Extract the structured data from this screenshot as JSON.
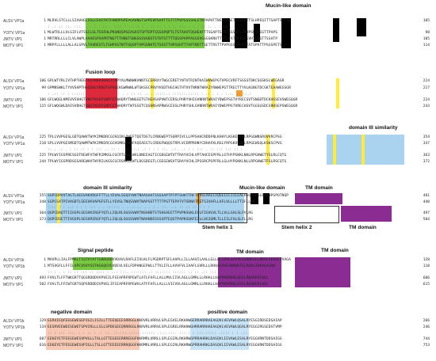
{
  "colors": {
    "signal": "#78c841",
    "fusion": "#e0283c",
    "domain3": "#a9d3ef",
    "tm": "#8b2c92",
    "negative": "#f7c9b5",
    "positive": "#c7e3f5",
    "conserved": "#000000",
    "yellow": "#ffeb3b"
  },
  "labels": {
    "signal_peptide": "Signal peptide",
    "mucin_like": "Mucin-like domain",
    "fusion_loop": "Fusion loop",
    "domain3": "domain III similarity",
    "stem1": "Stem helix 1",
    "stem2": "Stem helix 2",
    "tm_domain": "TM domain",
    "negative_domain": "negative domain",
    "positive_domain": "positive domain"
  },
  "block1": {
    "rows": [
      {
        "name": "ALSV VP1a",
        "start": "1",
        "seq": "MLRVLSTCLLLSIAVHGLSSLCEAFFKTFHKRPGPEPGAVNGTSPPEVPSAPTTSTTTPVPSSSSHLETKPAPHTTNSTPSAETSATPSTTSLHPEQITTSAPTSTTSE",
        "end": "105"
      },
      {
        "name": "YOTV VP1a",
        "start": "1",
        "seq": "MLWTRLLLVLSIFLVTSSCLGLTSSFHLPRSNQSPGEASASTSPTGPTSSSSPQPTLTSTAAVTQSHEAFTTSGAPTGTPSSSSQTSTPVPSNITGSTTPAPS",
        "end": "98"
      },
      {
        "name": "JMTV VP1",
        "start": "1",
        "seq": "MRTRRLLLLCLVLAWPLAAAESPSAPRTNGTTTHNSTSNGSGSVGDSTSTHTSTTTTQSSPAPPASGSVGSGSKNVTTSTSTATPTTSSGVHTENGTTSSATP",
        "end": "105"
      },
      {
        "name": "MOTV VP1",
        "start": "1",
        "seq": "MRPFLLLLLALLALSPVLTAVDESTLTGHPSSTNTTGQSPTAPGSNVTETSSSTTHPSSHTTTAPTNSTTSETTRSTTPVPGSSEHSTSTATSPATTPSGSPETS",
        "end": "114"
      }
    ],
    "cons": ": .: :: ::. :::.  . : : .  ::  . :.:: : .: ::  :   . :: :.  : : :. ::: .   : . :: :. . : ::  ."
  },
  "block2": {
    "rows": [
      {
        "name": "ALSV VP1a",
        "start": "106",
        "seq": "GPLWTYRLIVTHPTHEGTVGFKKASGDGTCRPYALMWNWKVNNTGCERRAYTWGCERETYNTVTRINTKAIWVWEPGTVPECVRFTSGSSTDKCSGSKSLWEGAGR",
        "end": "224"
      },
      {
        "name": "YOTV VP1a",
        "start": "99",
        "seq": "GPMNSWKLTYVVSHPTHSGEKGYRDGTGPSGEKGWRWNLWTGKSGCPRVYHSDTHGCHGTHTVVTNRNTWRAIYRWWEPGTTRECTTYVLKGNGTDCGKTEAAWEGSGR",
        "end": "217"
      },
      {
        "name": "JMTV VP1",
        "start": "106",
        "seq": "GFLWQGLKMEVVSVHGTDNGTKGSFGWPCGTWHQRYTWNGGETGTHEHSAPVWTCERSLPHRYVHIGVNRNTWRAIYDWEPSGTVYRECSVTSNGDTDCKHSSEVSWEGQGR",
        "end": "224"
      },
      {
        "name": "MOTV VP1",
        "start": "115",
        "seq": "GFLWQGWLDAISVDHGTHQGTKGSFGWPCGTWHQRYTWTGSETCQSHNSAPRWSCESSLPHRYSHLGVNRNTWRAIYDWEPPGTVRECHSVTGGSGSDCGRHSEPSWEGQGR",
        "end": "243"
      }
    ],
    "cons": ":   .::  ::  : :::::: ::.  .  :: : . .: .  : ::   ::  .: . :::::.: ::::::.:::::  : .: . : .  :.:.  .: ::.:"
  },
  "block3": {
    "rows": [
      {
        "name": "ALSV VP1a",
        "start": "225",
        "seq": "TPLLVVPGESLGDTQAWVTWYKIMKDRCGCKQIKLQWEFTQETDGTLCRNGWEPTSQRPIVCLLPPSAHCRDDFNLKHHYLKGKEPLHLRPGQWNSRQVVRCPSG",
        "end": "354"
      },
      {
        "name": "YOTV VP1a",
        "start": "218",
        "seq": "SPLLVVPGESMGDTQAWMTWFKIMKERCGCHSMKLTWRFAQEAEGTLCRDGFWQQSTRPLVCEMPRHNYCDHAFKLRGLYRPGKVLDMLRPGEWSQLKSKSCPVG",
        "end": "347"
      },
      {
        "name": "JMTV VP1",
        "start": "225",
        "seq": "TPLWYIGSPRESGSTREWFVTWFRIMKGLCGCRTLKLEWVLDNEEAGTICGDGEWTVTTRAYVCHLVPTAHCESPFRLLGTHYPSKKLNHLRPGHWETYSLRLCQTG",
        "end": "363"
      },
      {
        "name": "MOTV VP1",
        "start": "244",
        "seq": "TPLWYIGSPRDSGSAREWHVTWYRILKGSCGCRSMKLEWTLDGSDEGTLCGEGEWSVTSRAYVCHLIPSSRCPSPFRLLGLHYPGKKLNLLRPGHWETFSLRSCQTG",
        "end": "372"
      }
    ],
    "cons": " ::    .   .:  . :  :: :: :  : :::  .. ::  :   .:: ::.:  .:  : : : ::. .::. .:  : :  :::  .  :: :::  ::: ::  :"
  },
  "block4": {
    "rows": [
      {
        "name": "ALSV VP1a",
        "start": "355",
        "seq": "SGPCDPVVTAGTLAEEVAKVRGFFTTLLYEVALSEQSYWVTNAASAATSSSSAPTPTPTSHHTTRFTFVSLAALLIQGLLLLIILLALHKQCLWGLESPNPSPQTNQP",
        "end": "481"
      },
      {
        "name": "YOTV VP1a",
        "start": "348",
        "seq": "SGPCSATPIVAGDTLSEEVKVAPGFSTLLYEVSLTNQSVWVTNAPSSTTTTTPSTTEPATVTSRNATRSTSIVAFLLAFLVLLLLTTIFLLRR",
        "end": "440"
      },
      {
        "name": "JMTV VP1",
        "start": "364",
        "seq": "QGPCDAQTTIIGSPLSEGVKIRGFYQTLLIQLRLSGGSVWVTNSHHDTSTSHSAEETTPVPKSGKLEVLFIGVGVLTLLVLLGALSLFVLRG",
        "end": "497"
      },
      {
        "name": "MOTV VP1",
        "start": "373",
        "seq": "QGPCDSETTIVGSPLSEGVRIRGFYQTLLIQLQLSGGSVWVTNAHHDESSSSPTEQSTPAPKSGKFEILLVGIGMLTLLIILFALSLFLLRG",
        "end": "504"
      }
    ],
    "cons": " ::::   :  :  :.: :  : :  :::  .   . ::::::  . .  .:    ..  . .  : . ::. ..: ::  :: :: : : :"
  },
  "block5": {
    "rows": [
      {
        "name": "ALSV VP1b",
        "start": "1",
        "seq": "MAVPLLIALFPMALTIQTVYATTGRRGDDVVDAVLRAFLEIVLKLFLPGDRPTSFLAAPLLILLAAVILAALLGLLQLLRHLAAVVESSRRKSELRKRLAEASLVVAGA",
        "end": "128"
      },
      {
        "name": "YOTV VP1b",
        "start": "1",
        "seq": "MTSVGFLLFFILAPCVSVYSSTKGGQGYEVDEVLVELFDPHNGEPWLLTTVLIFLLAVVFVLIAAFLGVRLLLRHVASVVESNRRKTELRGRLAAKAGAIWA",
        "end": "118"
      },
      {
        "name": "JMTV VP1",
        "start": "493",
        "seq": "FVVLTLFFTWKGRTTQGSRDDDVVPVEILFSIAPRFRPEWTLATLFAFLLALLMVLCIVLAGLLGMRLLLRHALLVAPPKDRRKLQEELRQARERIAEL",
        "end": "606"
      },
      {
        "name": "MOTV VP1",
        "start": "502",
        "seq": "FVVLTLFFCWTGRTSQPSRDDDIVPVELIFSIAPRFRPEWVLATFFAFLLALLLVICVVLAGLLGMRLLLRHALLVAPPKDRRKLEEELRQAKERLAEL",
        "end": "615"
      }
    ],
    "cons": "::  : . :  ::   :: ::: :: ::::   :  ..:  :::. :::::::  .: :::::::  :::::: :: ::  .::  ::: ::: ::   ."
  },
  "block6": {
    "rows": [
      {
        "name": "ALSV VP1b",
        "start": "129",
        "seq": "EERVIEQFEEGEWESEPIGILISILLTTEEQEEESRRGGLKKRVRLVRRVLSPLEGVELRKHHWGERRARRRAEAGQVLVEVAWLQSALRYESGIRDSEDSAIAP",
        "end": "266"
      },
      {
        "name": "YOTV VP1b",
        "start": "119",
        "seq": "EESRVEEWEESEWETSPVIRLLLSLLSPDEGEEQRRRGGLRKRVRLVRRVLSPLEGRELRRHHWGHRRARRHAEAGQVLVEVAWLQGALRYEGGIRGSEDSTVMP",
        "end": "246"
      },
      {
        "name": "JMTV VP1",
        "start": "607",
        "seq": "EEKEYETFEEGEWESVPVGLLTALLGTTEGEEERRREGGFKKRMRLVRRLLSPLEGIRLRKHRWGPRRAHRKLDASQVLIEVAWLESALRYEGGVRNTDDSAIGG",
        "end": "744"
      },
      {
        "name": "MOTV VP1",
        "start": "616",
        "seq": "EEKEYETFEEGEWESVPIGLLTSLLGTTEEEEERRRQGGFKKRMRLVRRLLSPLEGIRLRKHRWGPRRAHRKLDASQVLIEVAWLESALRYEGGVRNTDDSAIGG",
        "end": "753"
      }
    ],
    "cons": "::   : ::: :::.  :  :  ::  :  .: ::. ::.:::.:::::.:::::: .:::.:::. :::.:  :  :::.::::: .:::: : :  .::.  "
  }
}
